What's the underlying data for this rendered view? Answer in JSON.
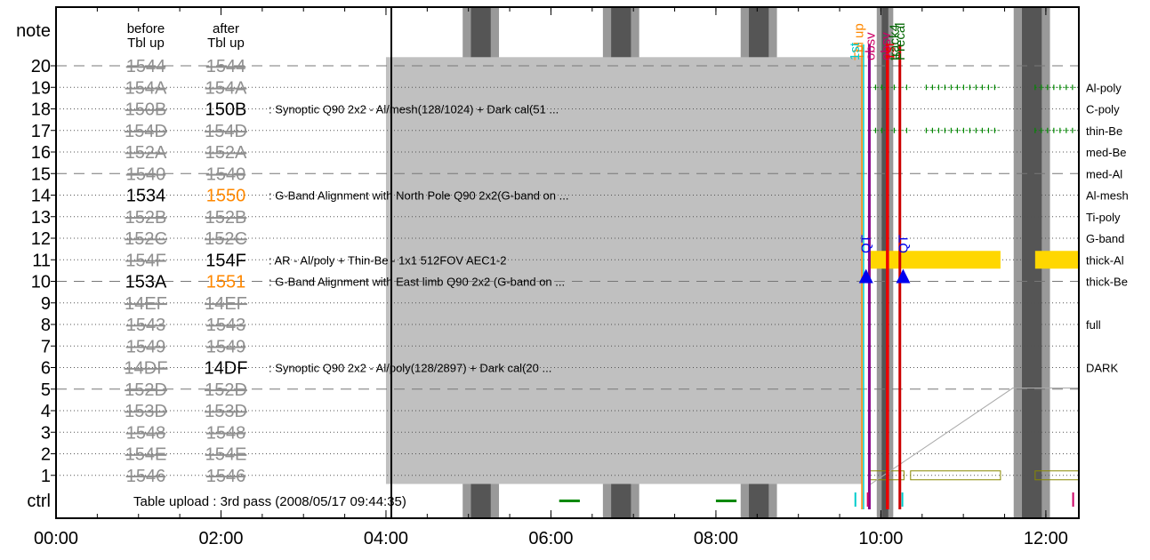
{
  "chart_data": {
    "type": "timeline",
    "footer_note": "Table upload : 3rd pass (2008/05/17 09:44:35)",
    "y_axis": {
      "top_label": "note",
      "bottom_label": "ctrl",
      "ticks": [
        "20",
        "19",
        "18",
        "17",
        "16",
        "15",
        "14",
        "13",
        "12",
        "11",
        "10",
        "9",
        "8",
        "7",
        "6",
        "5",
        "4",
        "3",
        "2",
        "1"
      ]
    },
    "x_axis": {
      "range_hours": [
        0,
        12.4
      ],
      "ticks": [
        {
          "hour": 0,
          "label": "00:00"
        },
        {
          "hour": 2,
          "label": "02:00"
        },
        {
          "hour": 4,
          "label": "04:00"
        },
        {
          "hour": 6,
          "label": "06:00"
        },
        {
          "hour": 8,
          "label": "08:00"
        },
        {
          "hour": 10,
          "label": "10:00"
        },
        {
          "hour": 12,
          "label": "12:00"
        }
      ]
    },
    "columns": {
      "before_header_1": "before",
      "before_header_2": "Tbl up",
      "after_header_1": "after",
      "after_header_2": "Tbl up"
    },
    "rows": [
      {
        "n": 20,
        "before": "1544",
        "after": "1544",
        "before_style": "strike",
        "after_style": "strike",
        "desc": "",
        "filter": ""
      },
      {
        "n": 19,
        "before": "154A",
        "after": "154A",
        "before_style": "strike",
        "after_style": "strike",
        "desc": "",
        "filter": "Al-poly"
      },
      {
        "n": 18,
        "before": "150B",
        "after": "150B",
        "before_style": "strike",
        "after_style": "active",
        "desc": ": Synoptic Q90 2x2 - Al/mesh(128/1024) + Dark cal(51 ...",
        "filter": "C-poly"
      },
      {
        "n": 17,
        "before": "154D",
        "after": "154D",
        "before_style": "strike",
        "after_style": "strike",
        "desc": "",
        "filter": "thin-Be"
      },
      {
        "n": 16,
        "before": "152A",
        "after": "152A",
        "before_style": "strike",
        "after_style": "strike",
        "desc": "",
        "filter": "med-Be"
      },
      {
        "n": 15,
        "before": "1540",
        "after": "1540",
        "before_style": "strike",
        "after_style": "strike",
        "desc": "",
        "filter": "med-Al"
      },
      {
        "n": 14,
        "before": "1534",
        "after": "1550",
        "before_style": "active",
        "after_style": "new",
        "desc": ": G-Band Alignment with North Pole Q90 2x2(G-band on ...",
        "filter": "Al-mesh"
      },
      {
        "n": 13,
        "before": "152B",
        "after": "152B",
        "before_style": "strike",
        "after_style": "strike",
        "desc": "",
        "filter": "Ti-poly"
      },
      {
        "n": 12,
        "before": "152C",
        "after": "152C",
        "before_style": "strike",
        "after_style": "strike",
        "desc": "",
        "filter": "G-band"
      },
      {
        "n": 11,
        "before": "154F",
        "after": "154F",
        "before_style": "strike",
        "after_style": "active",
        "desc": ": AR - Al/poly + Thin-Be - 1x1 512FOV AEC1-2",
        "filter": "thick-Al"
      },
      {
        "n": 10,
        "before": "153A",
        "after": "1551",
        "before_style": "active",
        "after_style": "new",
        "desc": ": G-Band Alignment with East limb Q90 2x2 (G-band on ...",
        "filter": "thick-Be"
      },
      {
        "n": 9,
        "before": "14EF",
        "after": "14EF",
        "before_style": "strike",
        "after_style": "strike",
        "desc": "",
        "filter": ""
      },
      {
        "n": 8,
        "before": "1543",
        "after": "1543",
        "before_style": "strike",
        "after_style": "strike",
        "desc": "",
        "filter": "full"
      },
      {
        "n": 7,
        "before": "1549",
        "after": "1549",
        "before_style": "strike",
        "after_style": "strike",
        "desc": "",
        "filter": ""
      },
      {
        "n": 6,
        "before": "14DF",
        "after": "14DF",
        "before_style": "strike",
        "after_style": "active",
        "desc": ": Synoptic Q90 2x2 - Al/poly(128/2897) + Dark cal(20 ...",
        "filter": "DARK"
      },
      {
        "n": 5,
        "before": "152D",
        "after": "152D",
        "before_style": "strike",
        "after_style": "strike",
        "desc": "",
        "filter": ""
      },
      {
        "n": 4,
        "before": "153D",
        "after": "153D",
        "before_style": "strike",
        "after_style": "strike",
        "desc": "",
        "filter": ""
      },
      {
        "n": 3,
        "before": "1548",
        "after": "1548",
        "before_style": "strike",
        "after_style": "strike",
        "desc": "",
        "filter": ""
      },
      {
        "n": 2,
        "before": "154E",
        "after": "154E",
        "before_style": "strike",
        "after_style": "strike",
        "desc": "",
        "filter": ""
      },
      {
        "n": 1,
        "before": "1546",
        "after": "1546",
        "before_style": "strike",
        "after_style": "strike",
        "desc": "",
        "filter": ""
      }
    ],
    "night_bands": [
      {
        "outer": [
          4.93,
          5.37
        ],
        "inner": [
          5.03,
          5.27
        ]
      },
      {
        "outer": [
          6.63,
          7.07
        ],
        "inner": [
          6.73,
          6.97
        ]
      },
      {
        "outer": [
          8.3,
          8.74
        ],
        "inner": [
          8.4,
          8.64
        ]
      },
      {
        "outer": [
          9.95,
          10.15
        ],
        "inner": [
          10.01,
          10.09
        ]
      },
      {
        "outer": [
          11.61,
          12.05
        ],
        "inner": [
          11.71,
          11.95
        ]
      }
    ],
    "gray_block": {
      "start": 4.0,
      "end": 9.77,
      "row_top": 20.4,
      "row_bottom": 0.6
    },
    "vertical_event_labels": [
      {
        "hour": 9.72,
        "text": "Tbl up",
        "color": "#ff8800"
      },
      {
        "hour": 9.67,
        "text": "1st",
        "color": "#00cccc"
      },
      {
        "hour": 9.86,
        "text": "obsv",
        "color": "#cc0066"
      },
      {
        "hour": 10.05,
        "text": "obsv",
        "color": "#cc0066"
      },
      {
        "hour": 10.1,
        "text": "1st",
        "color": "#ee0000"
      },
      {
        "hour": 10.15,
        "text": "track4",
        "color": "#006600"
      },
      {
        "hour": 10.22,
        "text": "Precal",
        "color": "#006600"
      }
    ],
    "event_lines": [
      {
        "hour": 9.77,
        "color": "#ff8800",
        "width": 1.5
      },
      {
        "hour": 9.79,
        "color": "#00cccc",
        "width": 1.5
      },
      {
        "hour": 9.86,
        "color": "#880088",
        "width": 3
      },
      {
        "hour": 10.08,
        "color": "#ee0000",
        "width": 3.5
      },
      {
        "hour": 10.23,
        "color": "#cc0000",
        "width": 3
      }
    ],
    "qt_markers": [
      {
        "hour": 9.82,
        "text": "QT"
      },
      {
        "hour": 10.27,
        "text": "QT"
      }
    ],
    "obs_bar": {
      "row": 11,
      "segments": [
        [
          9.86,
          11.45
        ],
        [
          11.87,
          12.4
        ]
      ],
      "color": "#ffd700"
    },
    "thin_bars": [
      {
        "row": 1,
        "segments": [
          [
            9.86,
            10.28
          ],
          [
            10.36,
            11.45
          ],
          [
            11.87,
            12.4
          ]
        ],
        "color": "#888800"
      }
    ],
    "dotted_ticks": [
      {
        "row": 19,
        "segments": [
          [
            9.86,
            10.35
          ],
          [
            10.55,
            11.45
          ],
          [
            11.87,
            12.4
          ]
        ],
        "color": "#008800"
      },
      {
        "row": 17,
        "segments": [
          [
            9.86,
            10.35
          ],
          [
            10.55,
            11.45
          ],
          [
            11.87,
            12.4
          ]
        ],
        "color": "#008800"
      }
    ],
    "ctrl_segments": [
      {
        "start": 6.1,
        "end": 6.35,
        "color": "#008800"
      },
      {
        "start": 8.0,
        "end": 8.25,
        "color": "#008800"
      },
      {
        "start": 9.68,
        "end": 9.72,
        "color": "#00cccc"
      },
      {
        "start": 9.83,
        "end": 9.85,
        "color": "#cc0066"
      },
      {
        "start": 10.25,
        "end": 10.27,
        "color": "#00cccc"
      },
      {
        "start": 12.32,
        "end": 12.34,
        "color": "#cc0066"
      }
    ],
    "trend_line": {
      "points": [
        [
          9.86,
          0.55
        ],
        [
          11.6,
          5.05
        ],
        [
          12.4,
          5.05
        ]
      ],
      "color": "#aaaaaa"
    }
  }
}
